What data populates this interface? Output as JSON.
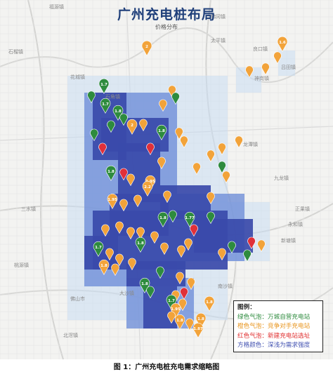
{
  "title": "广州充电桩布局",
  "subtitle": "价格分布",
  "caption": "图 1：广州充电桩充电需求缩略图",
  "legend": {
    "title": "图例：",
    "items": [
      {
        "label": "绿色气泡",
        "sep": "：",
        "text": "万城自营充电站",
        "color": "#2e8b3e"
      },
      {
        "label": "橙色气泡",
        "sep": "：",
        "text": "竞争对手充电站",
        "color": "#f0a030"
      },
      {
        "label": "红色气泡",
        "sep": "：",
        "text": "新建充电站选址",
        "color": "#e03030"
      },
      {
        "label": "方格颜色",
        "sep": "：",
        "text": "深浅为需求强度",
        "color": "#4050b0"
      }
    ]
  },
  "colors": {
    "green": "#2e8b3e",
    "orange": "#f2a33a",
    "red": "#e0303a",
    "grid_dark": "#3a4aaa",
    "grid_mid": "#6f8fd8",
    "grid_light": "#c9dcf3"
  },
  "places": [
    "福源镇",
    "石榴镇",
    "佛冈镇",
    "太平镇",
    "良口镇",
    "花城镇",
    "吕田镇",
    "石角镇",
    "神岗镇",
    "龙潭镇",
    "九龙镇",
    "正果镇",
    "新塘镇",
    "永和镇",
    "南沙镇",
    "大沙镇",
    "佛山市",
    "北滘镇",
    "桃源镇",
    "三水镇"
  ],
  "pin_labels": [
    "2",
    "1.6",
    "1.7",
    "1.7",
    "1.8",
    "2",
    "1.8",
    "1.8",
    "1.95",
    "2.2",
    "1.95",
    "1.8",
    "1.77",
    "1.7",
    "1.8",
    "1.8",
    "1.8",
    "1.7",
    "1.95",
    "1.8",
    "1.8",
    "1.87",
    "1.8"
  ]
}
